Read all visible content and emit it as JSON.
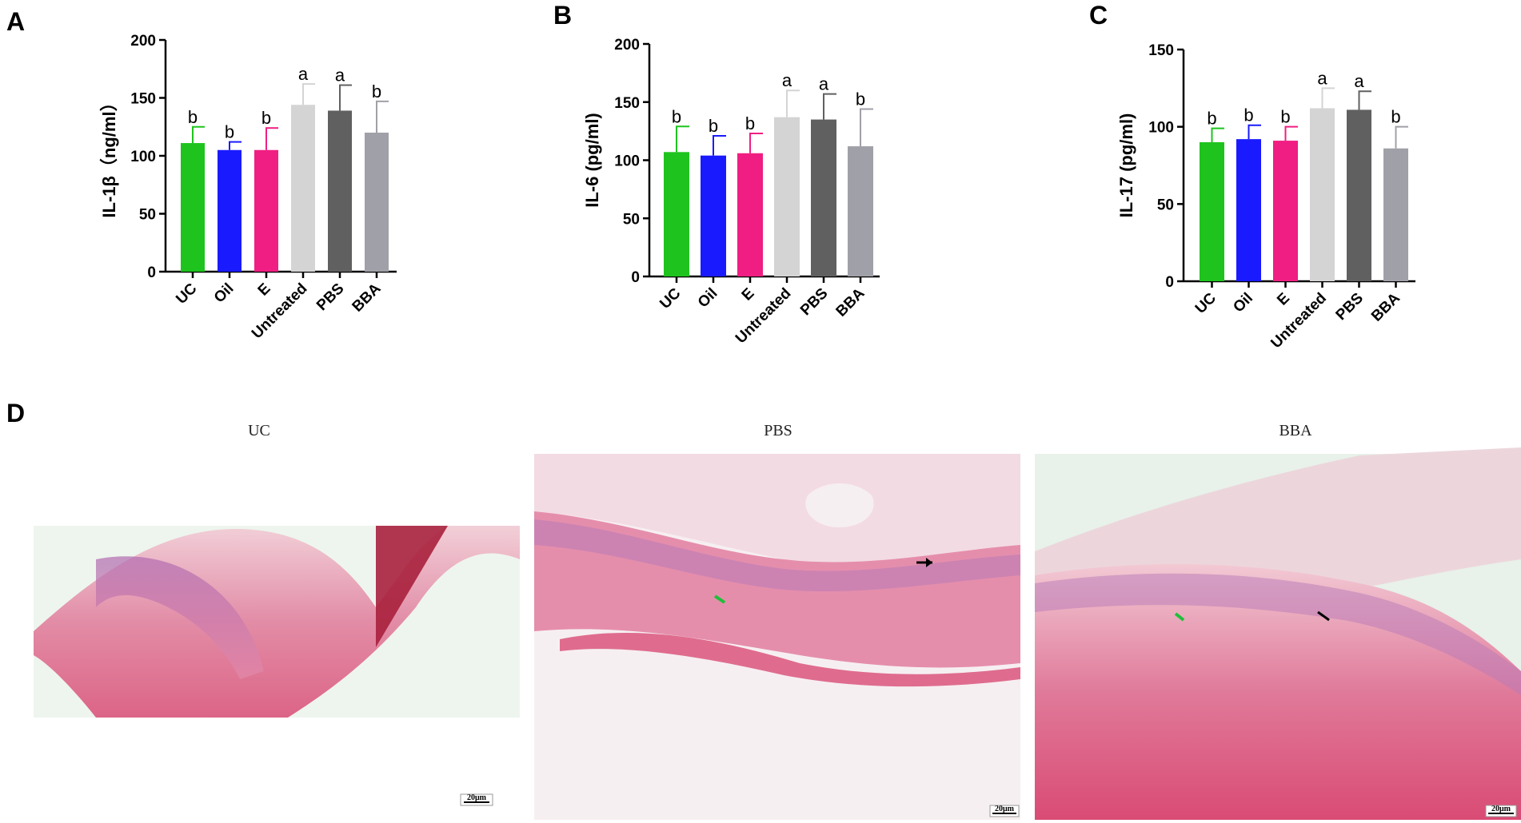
{
  "chart_data": [
    {
      "panel": "A",
      "type": "bar",
      "ylabel": "IL-1β（ng/ml）",
      "ylim": [
        0,
        200
      ],
      "yticks": [
        0,
        50,
        100,
        150,
        200
      ],
      "categories": [
        "UC",
        "Oil",
        "E",
        "Untreated",
        "PBS",
        "BBA"
      ],
      "values": [
        111,
        105,
        105,
        144,
        139,
        120
      ],
      "errors": [
        14,
        7,
        19,
        18,
        22,
        27
      ],
      "letters": [
        "b",
        "b",
        "b",
        "a",
        "a",
        "b"
      ],
      "colors": [
        "#1ec31e",
        "#1a1aff",
        "#f01e82",
        "#d4d4d4",
        "#606060",
        "#a0a0a8"
      ]
    },
    {
      "panel": "B",
      "type": "bar",
      "ylabel": "IL-6 (pg/ml)",
      "ylim": [
        0,
        200
      ],
      "yticks": [
        0,
        50,
        100,
        150,
        200
      ],
      "categories": [
        "UC",
        "Oil",
        "E",
        "Untreated",
        "PBS",
        "BBA"
      ],
      "values": [
        107,
        104,
        106,
        137,
        135,
        112
      ],
      "errors": [
        22,
        17,
        17,
        23,
        22,
        32
      ],
      "letters": [
        "b",
        "b",
        "b",
        "a",
        "a",
        "b"
      ],
      "colors": [
        "#1ec31e",
        "#1a1aff",
        "#f01e82",
        "#d4d4d4",
        "#606060",
        "#a0a0a8"
      ]
    },
    {
      "panel": "C",
      "type": "bar",
      "ylabel": "IL-17 (pg/ml)",
      "ylim": [
        0,
        150
      ],
      "yticks": [
        0,
        50,
        100,
        150
      ],
      "categories": [
        "UC",
        "Oil",
        "E",
        "Untreated",
        "PBS",
        "BBA"
      ],
      "values": [
        90,
        92,
        91,
        112,
        111,
        86
      ],
      "errors": [
        9,
        9,
        9,
        13,
        12,
        14
      ],
      "letters": [
        "b",
        "b",
        "b",
        "a",
        "a",
        "b"
      ],
      "colors": [
        "#1ec31e",
        "#1a1aff",
        "#f01e82",
        "#d4d4d4",
        "#606060",
        "#a0a0a8"
      ]
    }
  ],
  "histology": {
    "panel": "D",
    "images": [
      {
        "title": "UC",
        "scale": "20μm"
      },
      {
        "title": "PBS",
        "scale": "20μm"
      },
      {
        "title": "BBA",
        "scale": "20μm"
      }
    ]
  }
}
